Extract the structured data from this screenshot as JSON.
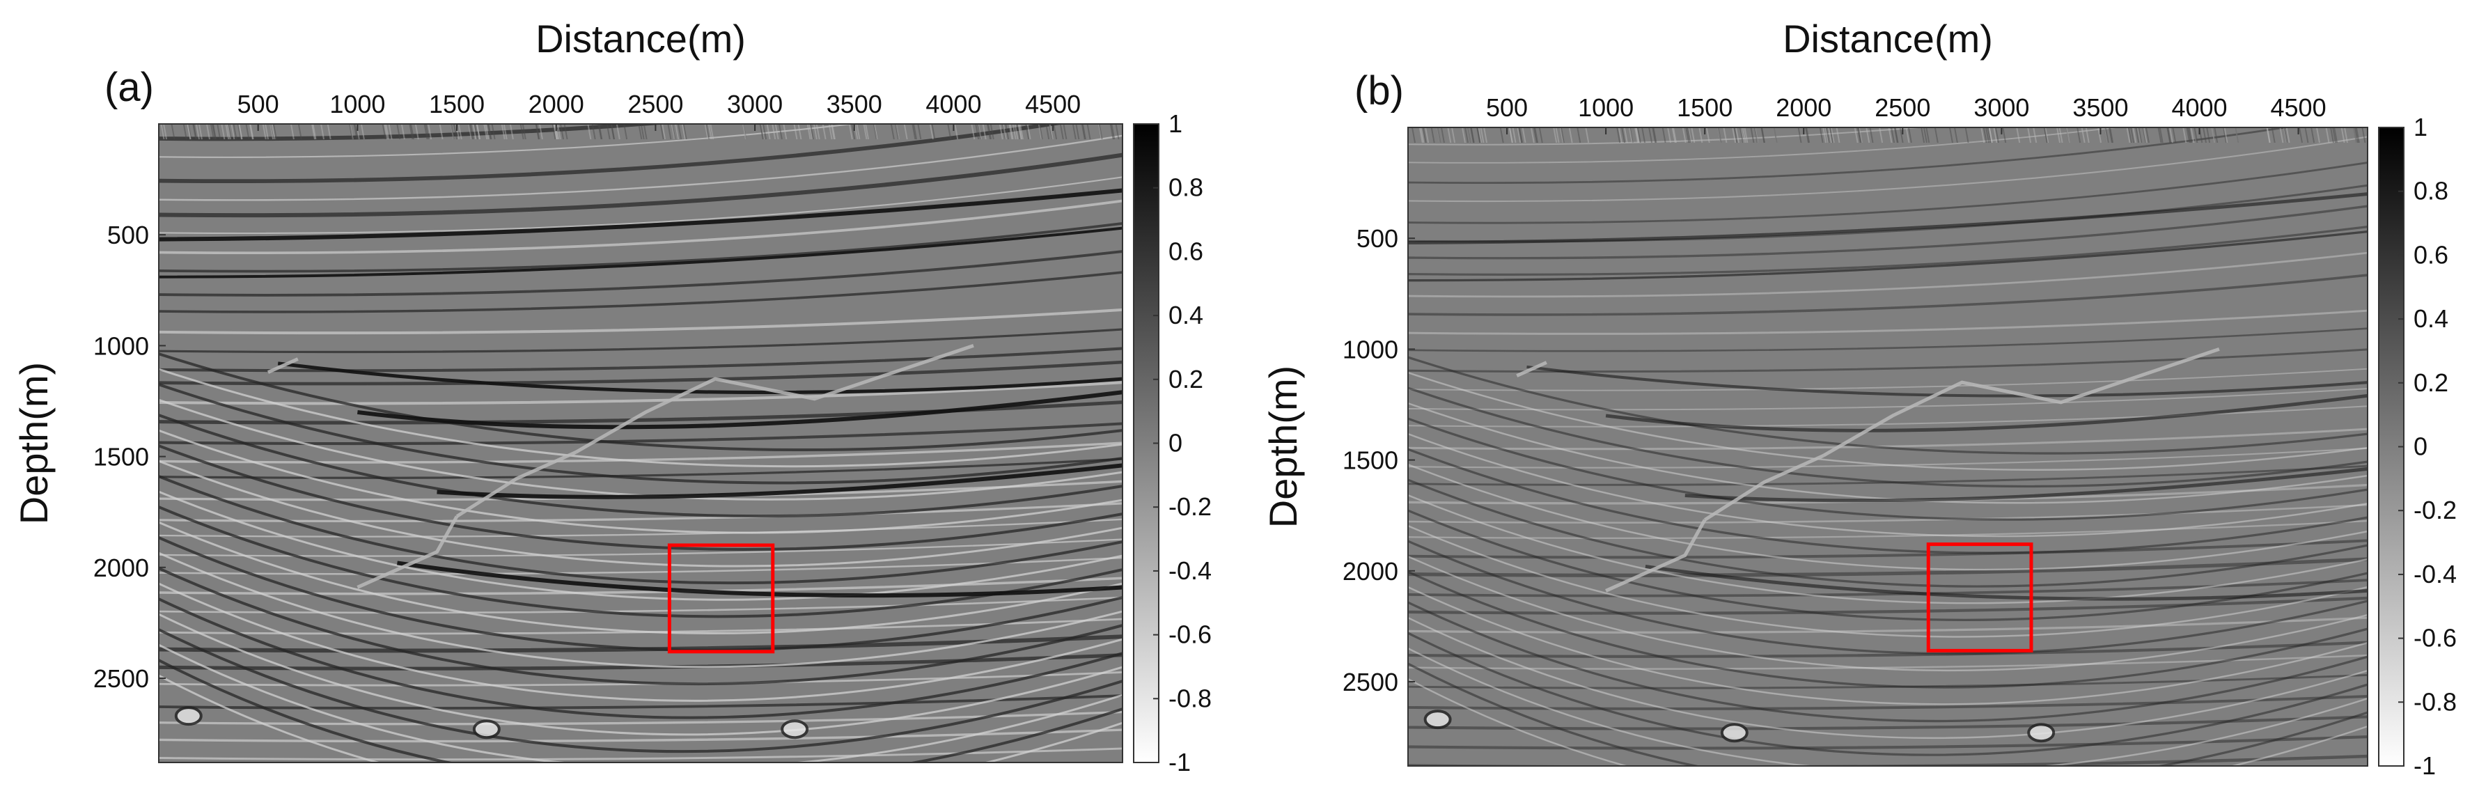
{
  "chart_data": [
    {
      "type": "heatmap",
      "panel_label": "(a)",
      "xlabel": "Distance(m)",
      "ylabel": "Depth(m)",
      "xlim": [
        0,
        4850
      ],
      "ylim": [
        0,
        2880
      ],
      "x_axis_position": "top",
      "y_inverted": true,
      "xticks": [
        500,
        1000,
        1500,
        2000,
        2500,
        3000,
        3500,
        4000,
        4500
      ],
      "yticks": [
        500,
        1000,
        1500,
        2000,
        2500
      ],
      "colormap": "gray",
      "colorbar": {
        "range": [
          -1,
          1
        ],
        "ticks": [
          1,
          0.8,
          0.6,
          0.4,
          0.2,
          0,
          -0.2,
          -0.4,
          -0.6,
          -0.8,
          -1
        ],
        "position": "right"
      },
      "highlight_box": {
        "x": [
          2570,
          3090
        ],
        "y": [
          1900,
          2380
        ],
        "color": "#ff0000"
      },
      "grid": false
    },
    {
      "type": "heatmap",
      "panel_label": "(b)",
      "xlabel": "Distance(m)",
      "ylabel": "Depth(m)",
      "xlim": [
        0,
        4850
      ],
      "ylim": [
        0,
        2880
      ],
      "x_axis_position": "top",
      "y_inverted": true,
      "xticks": [
        500,
        1000,
        1500,
        2000,
        2500,
        3000,
        3500,
        4000,
        4500
      ],
      "yticks": [
        500,
        1000,
        1500,
        2000,
        2500
      ],
      "colormap": "gray",
      "colorbar": {
        "range": [
          -1,
          1
        ],
        "ticks": [
          1,
          0.8,
          0.6,
          0.4,
          0.2,
          0,
          -0.2,
          -0.4,
          -0.6,
          -0.8,
          -1
        ],
        "position": "right"
      },
      "highlight_box": {
        "x": [
          2630,
          3150
        ],
        "y": [
          1880,
          2360
        ],
        "color": "#ff0000"
      },
      "grid": false
    }
  ]
}
